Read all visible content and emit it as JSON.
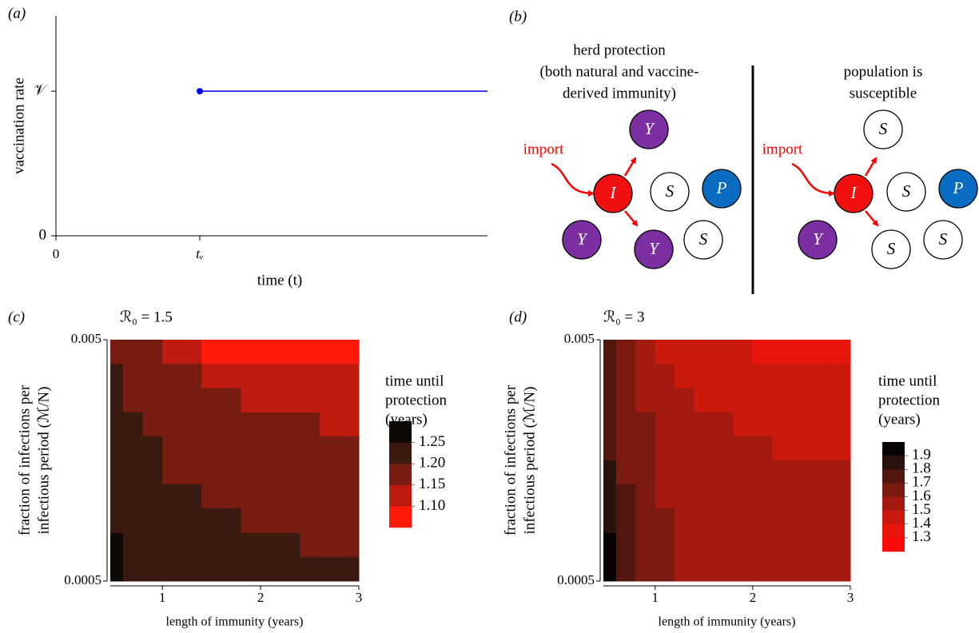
{
  "chart_data": [
    {
      "type": "line",
      "panel_label": "(a)",
      "xlabel": "time (t)",
      "ylabel": "vaccination rate",
      "xlim": [
        0,
        3
      ],
      "ylim": [
        0,
        1.52
      ],
      "xticks": [
        0,
        {
          "value": 1,
          "label": "tᵥ"
        }
      ],
      "yticks": [
        0,
        {
          "value": 1,
          "label": "𝒱"
        }
      ],
      "series": [
        {
          "x": [
            1,
            3
          ],
          "values": [
            1,
            1
          ],
          "color": "#0000ff"
        }
      ],
      "start_marker": true
    },
    {
      "type": "heatmap",
      "panel_label": "(c)",
      "title": "ℛ₀ = 1.5",
      "xlabel": "length of immunity (years)",
      "ylabel": [
        "fraction of infections per",
        "infectious period (ℳ/N)"
      ],
      "xlim": [
        0.47,
        3
      ],
      "ylim": [
        0.0005,
        0.005
      ],
      "log_y": true,
      "xticks": [
        1,
        2,
        3
      ],
      "yticks": [
        0.005,
        0.0005
      ],
      "xbins": [
        0.47,
        0.6,
        0.8,
        1.0,
        1.2,
        1.4,
        1.6,
        1.8,
        2.0,
        2.2,
        2.4,
        2.6,
        2.8,
        3.0
      ],
      "ybins": [
        0.005,
        0.00397,
        0.00315,
        0.0025,
        0.00199,
        0.00158,
        0.00126,
        0.001,
        0.00079,
        0.00063,
        0.0005
      ],
      "z": [
        [
          1.17,
          1.17,
          1.17,
          1.12,
          1.12,
          1.08,
          1.08,
          1.08,
          1.08,
          1.08,
          1.08,
          1.08,
          1.08
        ],
        [
          1.22,
          1.17,
          1.17,
          1.17,
          1.17,
          1.12,
          1.12,
          1.12,
          1.12,
          1.12,
          1.12,
          1.12,
          1.12
        ],
        [
          1.22,
          1.17,
          1.17,
          1.17,
          1.17,
          1.17,
          1.17,
          1.12,
          1.12,
          1.12,
          1.12,
          1.12,
          1.12
        ],
        [
          1.22,
          1.22,
          1.17,
          1.17,
          1.17,
          1.17,
          1.17,
          1.17,
          1.17,
          1.17,
          1.17,
          1.12,
          1.12
        ],
        [
          1.22,
          1.22,
          1.22,
          1.17,
          1.17,
          1.17,
          1.17,
          1.17,
          1.17,
          1.17,
          1.17,
          1.17,
          1.17
        ],
        [
          1.22,
          1.22,
          1.22,
          1.17,
          1.17,
          1.17,
          1.17,
          1.17,
          1.17,
          1.17,
          1.17,
          1.17,
          1.17
        ],
        [
          1.22,
          1.22,
          1.22,
          1.22,
          1.22,
          1.17,
          1.17,
          1.17,
          1.17,
          1.17,
          1.17,
          1.17,
          1.17
        ],
        [
          1.22,
          1.22,
          1.22,
          1.22,
          1.22,
          1.22,
          1.22,
          1.17,
          1.17,
          1.17,
          1.17,
          1.17,
          1.17
        ],
        [
          1.27,
          1.22,
          1.22,
          1.22,
          1.22,
          1.22,
          1.22,
          1.22,
          1.22,
          1.22,
          1.17,
          1.17,
          1.17
        ],
        [
          1.27,
          1.22,
          1.22,
          1.22,
          1.22,
          1.22,
          1.22,
          1.22,
          1.22,
          1.22,
          1.22,
          1.22,
          1.22
        ]
      ],
      "colorbar": {
        "title": [
          "time until",
          "protection",
          "(years)"
        ],
        "edges": [
          1.05,
          1.1,
          1.15,
          1.2,
          1.25,
          1.3
        ],
        "colors": [
          "#ff1a0a",
          "#bf1b10",
          "#761c10",
          "#3a1a10",
          "#0e0806"
        ],
        "ticks": [
          {
            "value": 1.1,
            "label": "1.10"
          },
          1.15,
          {
            "value": 1.2,
            "label": "1.20"
          },
          1.25
        ]
      }
    },
    {
      "type": "heatmap",
      "panel_label": "(d)",
      "title": "ℛ₀ = 3",
      "xlabel": "length of immunity (years)",
      "ylabel": [
        "fraction of infections per",
        "infectious period (ℳ/N)"
      ],
      "xlim": [
        0.47,
        3
      ],
      "ylim": [
        0.0005,
        0.005
      ],
      "log_y": true,
      "xticks": [
        1,
        2,
        3
      ],
      "yticks": [
        0.005,
        0.0005
      ],
      "xbins": [
        0.47,
        0.6,
        0.8,
        1.0,
        1.2,
        1.4,
        1.6,
        1.8,
        2.0,
        2.2,
        2.4,
        2.6,
        2.8,
        3.0
      ],
      "ybins": [
        0.005,
        0.00397,
        0.00315,
        0.0025,
        0.00199,
        0.00158,
        0.00126,
        0.001,
        0.00079,
        0.00063,
        0.0005
      ],
      "z": [
        [
          1.75,
          1.65,
          1.55,
          1.45,
          1.45,
          1.45,
          1.45,
          1.45,
          1.35,
          1.35,
          1.35,
          1.35,
          1.35
        ],
        [
          1.75,
          1.65,
          1.55,
          1.55,
          1.45,
          1.45,
          1.45,
          1.45,
          1.45,
          1.45,
          1.45,
          1.45,
          1.45
        ],
        [
          1.75,
          1.65,
          1.55,
          1.55,
          1.55,
          1.45,
          1.45,
          1.45,
          1.45,
          1.45,
          1.45,
          1.45,
          1.45
        ],
        [
          1.75,
          1.65,
          1.65,
          1.55,
          1.55,
          1.55,
          1.55,
          1.45,
          1.45,
          1.45,
          1.45,
          1.45,
          1.45
        ],
        [
          1.75,
          1.65,
          1.65,
          1.55,
          1.55,
          1.55,
          1.55,
          1.55,
          1.55,
          1.45,
          1.45,
          1.45,
          1.45
        ],
        [
          1.85,
          1.65,
          1.65,
          1.55,
          1.55,
          1.55,
          1.55,
          1.55,
          1.55,
          1.55,
          1.55,
          1.55,
          1.55
        ],
        [
          1.85,
          1.75,
          1.65,
          1.55,
          1.55,
          1.55,
          1.55,
          1.55,
          1.55,
          1.55,
          1.55,
          1.55,
          1.55
        ],
        [
          1.85,
          1.75,
          1.65,
          1.65,
          1.55,
          1.55,
          1.55,
          1.55,
          1.55,
          1.55,
          1.55,
          1.55,
          1.55
        ],
        [
          1.95,
          1.75,
          1.65,
          1.65,
          1.55,
          1.55,
          1.55,
          1.55,
          1.55,
          1.55,
          1.55,
          1.55,
          1.55
        ],
        [
          1.95,
          1.75,
          1.65,
          1.65,
          1.55,
          1.55,
          1.55,
          1.55,
          1.55,
          1.55,
          1.55,
          1.55,
          1.55
        ]
      ],
      "colorbar": {
        "title": [
          "time until",
          "protection",
          "(years)"
        ],
        "edges": [
          1.2,
          1.3,
          1.4,
          1.5,
          1.6,
          1.7,
          1.8,
          1.9,
          2.0
        ],
        "colors": [
          "#ff0a0a",
          "#ea150c",
          "#cc190e",
          "#a41a10",
          "#7a1a10",
          "#521810",
          "#2a120c",
          "#080404"
        ],
        "ticks": [
          1.3,
          1.4,
          1.5,
          1.6,
          1.7,
          1.8,
          1.9
        ]
      }
    }
  ],
  "diagram": {
    "panel_label": "(b)",
    "left_title": [
      "herd protection",
      "(both natural and vaccine-",
      "derived immunity)"
    ],
    "right_title": [
      "population is",
      "susceptible"
    ],
    "import_labels": [
      "import",
      "import"
    ],
    "nodes": [
      "Y",
      "I",
      "S",
      "P",
      "Y",
      "Y",
      "S",
      "S",
      "I",
      "S",
      "P",
      "Y",
      "S",
      "S"
    ]
  }
}
